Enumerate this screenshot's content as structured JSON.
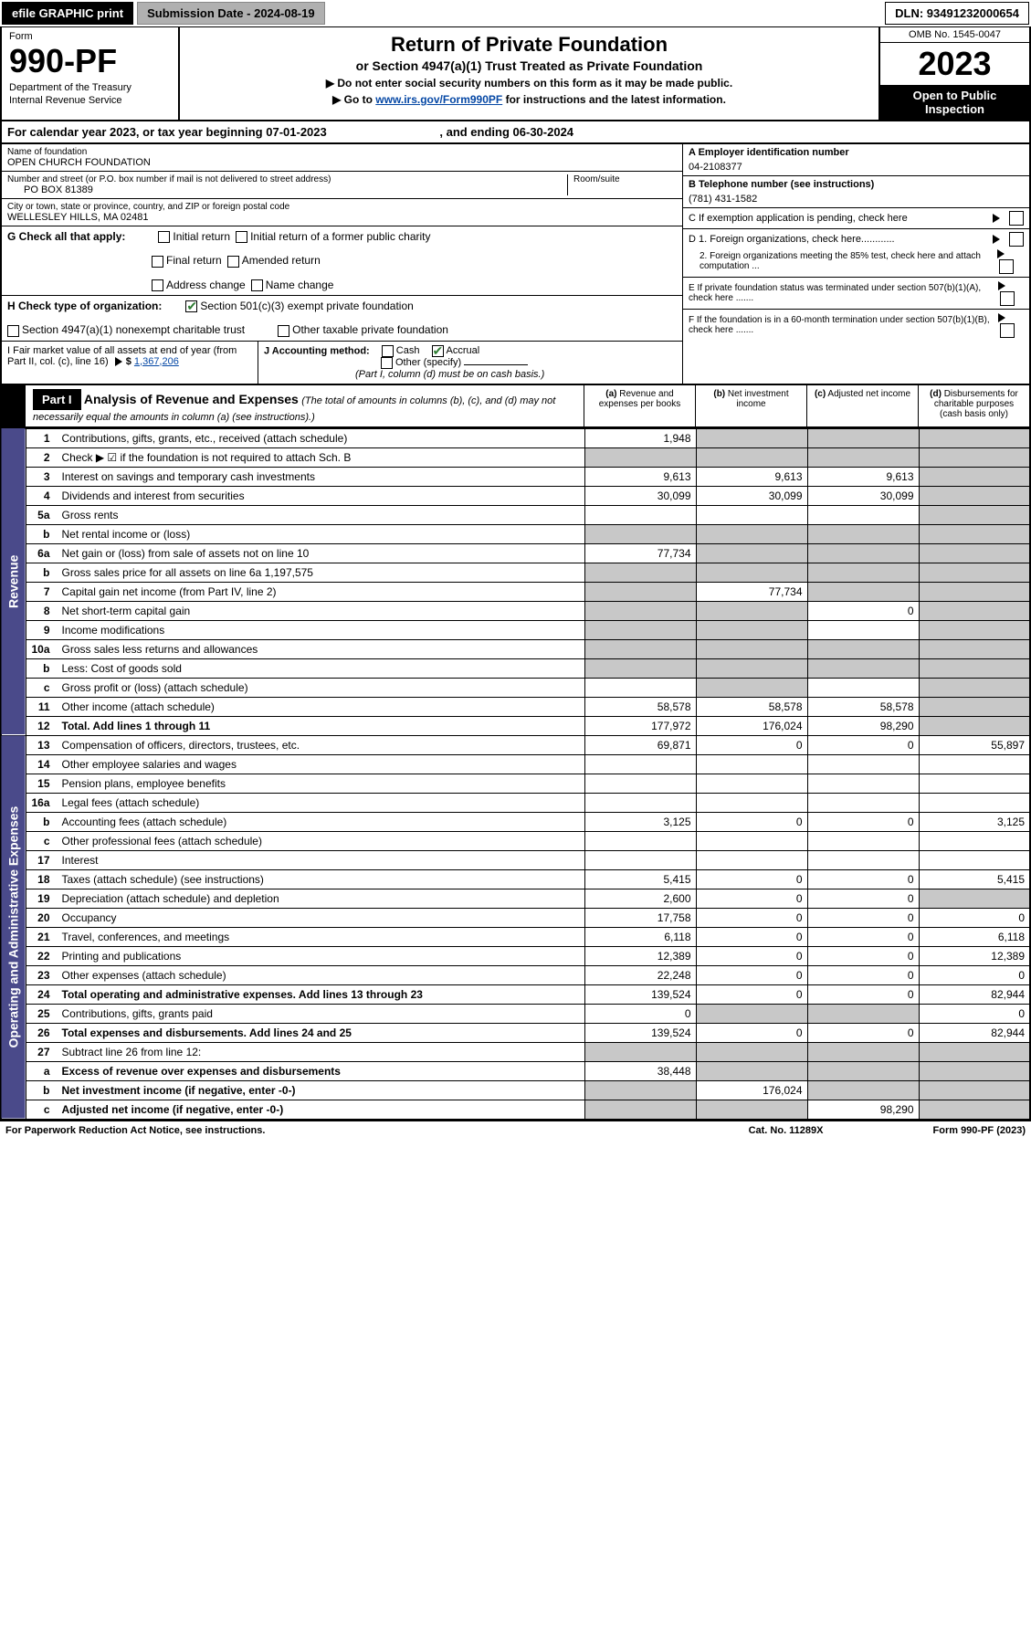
{
  "topbar": {
    "efile": "efile GRAPHIC print",
    "submission": "Submission Date - 2024-08-19",
    "dln": "DLN: 93491232000654"
  },
  "header": {
    "form_label": "Form",
    "form_no": "990-PF",
    "dept1": "Department of the Treasury",
    "dept2": "Internal Revenue Service",
    "title": "Return of Private Foundation",
    "subtitle": "or Section 4947(a)(1) Trust Treated as Private Foundation",
    "note1": "▶ Do not enter social security numbers on this form as it may be made public.",
    "note2_pre": "▶ Go to ",
    "note2_link": "www.irs.gov/Form990PF",
    "note2_post": " for instructions and the latest information.",
    "omb": "OMB No. 1545-0047",
    "year": "2023",
    "open": "Open to Public Inspection"
  },
  "calyear": {
    "text_pre": "For calendar year 2023, or tax year beginning ",
    "begin": "07-01-2023",
    "mid": " , and ending ",
    "end": "06-30-2024"
  },
  "info": {
    "name_label": "Name of foundation",
    "name": "OPEN CHURCH FOUNDATION",
    "addr_label": "Number and street (or P.O. box number if mail is not delivered to street address)",
    "addr": "PO BOX 81389",
    "room_label": "Room/suite",
    "city_label": "City or town, state or province, country, and ZIP or foreign postal code",
    "city": "WELLESLEY HILLS, MA  02481",
    "a_label": "A Employer identification number",
    "a_val": "04-2108377",
    "b_label": "B Telephone number (see instructions)",
    "b_val": "(781) 431-1582",
    "c_label": "C If exemption application is pending, check here",
    "d1": "D 1. Foreign organizations, check here............",
    "d2": "2. Foreign organizations meeting the 85% test, check here and attach computation ...",
    "e": "E  If private foundation status was terminated under section 507(b)(1)(A), check here .......",
    "f": "F  If the foundation is in a 60-month termination under section 507(b)(1)(B), check here .......",
    "g_label": "G Check all that apply:",
    "g_opts": [
      "Initial return",
      "Initial return of a former public charity",
      "Final return",
      "Amended return",
      "Address change",
      "Name change"
    ],
    "h_label": "H Check type of organization:",
    "h1": "Section 501(c)(3) exempt private foundation",
    "h2": "Section 4947(a)(1) nonexempt charitable trust",
    "h3": "Other taxable private foundation",
    "i_label": "I Fair market value of all assets at end of year (from Part II, col. (c), line 16)",
    "i_val": "1,367,206",
    "j_label": "J Accounting method:",
    "j_cash": "Cash",
    "j_accrual": "Accrual",
    "j_other": "Other (specify)",
    "j_note": "(Part I, column (d) must be on cash basis.)"
  },
  "part1": {
    "label": "Part I",
    "title": "Analysis of Revenue and Expenses",
    "title_note": "(The total of amounts in columns (b), (c), and (d) may not necessarily equal the amounts in column (a) (see instructions).)",
    "col_a": "(a) Revenue and expenses per books",
    "col_b": "(b) Net investment income",
    "col_c": "(c) Adjusted net income",
    "col_d": "(d) Disbursements for charitable purposes (cash basis only)"
  },
  "side_rev": "Revenue",
  "side_exp": "Operating and Administrative Expenses",
  "rows": [
    {
      "ln": "1",
      "desc": "Contributions, gifts, grants, etc., received (attach schedule)",
      "a": "1,948",
      "b": "",
      "c": "",
      "d": "",
      "shade_b": true,
      "shade_c": true,
      "shade_d": true
    },
    {
      "ln": "2",
      "desc": "Check ▶ ☑ if the foundation is not required to attach Sch. B",
      "a": "",
      "b": "",
      "c": "",
      "d": "",
      "shade_a": true,
      "shade_b": true,
      "shade_c": true,
      "shade_d": true
    },
    {
      "ln": "3",
      "desc": "Interest on savings and temporary cash investments",
      "a": "9,613",
      "b": "9,613",
      "c": "9,613",
      "d": "",
      "shade_d": true
    },
    {
      "ln": "4",
      "desc": "Dividends and interest from securities",
      "a": "30,099",
      "b": "30,099",
      "c": "30,099",
      "d": "",
      "shade_d": true
    },
    {
      "ln": "5a",
      "desc": "Gross rents",
      "a": "",
      "b": "",
      "c": "",
      "d": "",
      "shade_d": true
    },
    {
      "ln": "b",
      "desc": "Net rental income or (loss)",
      "a": "",
      "b": "",
      "c": "",
      "d": "",
      "shade_a": true,
      "shade_b": true,
      "shade_c": true,
      "shade_d": true
    },
    {
      "ln": "6a",
      "desc": "Net gain or (loss) from sale of assets not on line 10",
      "a": "77,734",
      "b": "",
      "c": "",
      "d": "",
      "shade_b": true,
      "shade_c": true,
      "shade_d": true
    },
    {
      "ln": "b",
      "desc": "Gross sales price for all assets on line 6a         1,197,575",
      "a": "",
      "b": "",
      "c": "",
      "d": "",
      "shade_a": true,
      "shade_b": true,
      "shade_c": true,
      "shade_d": true
    },
    {
      "ln": "7",
      "desc": "Capital gain net income (from Part IV, line 2)",
      "a": "",
      "b": "77,734",
      "c": "",
      "d": "",
      "shade_a": true,
      "shade_c": true,
      "shade_d": true
    },
    {
      "ln": "8",
      "desc": "Net short-term capital gain",
      "a": "",
      "b": "",
      "c": "0",
      "d": "",
      "shade_a": true,
      "shade_b": true,
      "shade_d": true
    },
    {
      "ln": "9",
      "desc": "Income modifications",
      "a": "",
      "b": "",
      "c": "",
      "d": "",
      "shade_a": true,
      "shade_b": true,
      "shade_d": true
    },
    {
      "ln": "10a",
      "desc": "Gross sales less returns and allowances",
      "a": "",
      "b": "",
      "c": "",
      "d": "",
      "shade_a": true,
      "shade_b": true,
      "shade_c": true,
      "shade_d": true
    },
    {
      "ln": "b",
      "desc": "Less: Cost of goods sold",
      "a": "",
      "b": "",
      "c": "",
      "d": "",
      "shade_a": true,
      "shade_b": true,
      "shade_c": true,
      "shade_d": true
    },
    {
      "ln": "c",
      "desc": "Gross profit or (loss) (attach schedule)",
      "a": "",
      "b": "",
      "c": "",
      "d": "",
      "shade_b": true,
      "shade_d": true
    },
    {
      "ln": "11",
      "desc": "Other income (attach schedule)",
      "a": "58,578",
      "b": "58,578",
      "c": "58,578",
      "d": "",
      "shade_d": true
    },
    {
      "ln": "12",
      "desc": "Total. Add lines 1 through 11",
      "a": "177,972",
      "b": "176,024",
      "c": "98,290",
      "d": "",
      "bold": true,
      "shade_d": true
    },
    {
      "ln": "13",
      "desc": "Compensation of officers, directors, trustees, etc.",
      "a": "69,871",
      "b": "0",
      "c": "0",
      "d": "55,897"
    },
    {
      "ln": "14",
      "desc": "Other employee salaries and wages",
      "a": "",
      "b": "",
      "c": "",
      "d": ""
    },
    {
      "ln": "15",
      "desc": "Pension plans, employee benefits",
      "a": "",
      "b": "",
      "c": "",
      "d": ""
    },
    {
      "ln": "16a",
      "desc": "Legal fees (attach schedule)",
      "a": "",
      "b": "",
      "c": "",
      "d": ""
    },
    {
      "ln": "b",
      "desc": "Accounting fees (attach schedule)",
      "a": "3,125",
      "b": "0",
      "c": "0",
      "d": "3,125"
    },
    {
      "ln": "c",
      "desc": "Other professional fees (attach schedule)",
      "a": "",
      "b": "",
      "c": "",
      "d": ""
    },
    {
      "ln": "17",
      "desc": "Interest",
      "a": "",
      "b": "",
      "c": "",
      "d": ""
    },
    {
      "ln": "18",
      "desc": "Taxes (attach schedule) (see instructions)",
      "a": "5,415",
      "b": "0",
      "c": "0",
      "d": "5,415"
    },
    {
      "ln": "19",
      "desc": "Depreciation (attach schedule) and depletion",
      "a": "2,600",
      "b": "0",
      "c": "0",
      "d": "",
      "shade_d": true
    },
    {
      "ln": "20",
      "desc": "Occupancy",
      "a": "17,758",
      "b": "0",
      "c": "0",
      "d": "0"
    },
    {
      "ln": "21",
      "desc": "Travel, conferences, and meetings",
      "a": "6,118",
      "b": "0",
      "c": "0",
      "d": "6,118"
    },
    {
      "ln": "22",
      "desc": "Printing and publications",
      "a": "12,389",
      "b": "0",
      "c": "0",
      "d": "12,389"
    },
    {
      "ln": "23",
      "desc": "Other expenses (attach schedule)",
      "a": "22,248",
      "b": "0",
      "c": "0",
      "d": "0"
    },
    {
      "ln": "24",
      "desc": "Total operating and administrative expenses. Add lines 13 through 23",
      "a": "139,524",
      "b": "0",
      "c": "0",
      "d": "82,944",
      "bold": true
    },
    {
      "ln": "25",
      "desc": "Contributions, gifts, grants paid",
      "a": "0",
      "b": "",
      "c": "",
      "d": "0",
      "shade_b": true,
      "shade_c": true
    },
    {
      "ln": "26",
      "desc": "Total expenses and disbursements. Add lines 24 and 25",
      "a": "139,524",
      "b": "0",
      "c": "0",
      "d": "82,944",
      "bold": true
    },
    {
      "ln": "27",
      "desc": "Subtract line 26 from line 12:",
      "a": "",
      "b": "",
      "c": "",
      "d": "",
      "shade_a": true,
      "shade_b": true,
      "shade_c": true,
      "shade_d": true
    },
    {
      "ln": "a",
      "desc": "Excess of revenue over expenses and disbursements",
      "a": "38,448",
      "b": "",
      "c": "",
      "d": "",
      "bold": true,
      "shade_b": true,
      "shade_c": true,
      "shade_d": true
    },
    {
      "ln": "b",
      "desc": "Net investment income (if negative, enter -0-)",
      "a": "",
      "b": "176,024",
      "c": "",
      "d": "",
      "bold": true,
      "shade_a": true,
      "shade_c": true,
      "shade_d": true
    },
    {
      "ln": "c",
      "desc": "Adjusted net income (if negative, enter -0-)",
      "a": "",
      "b": "",
      "c": "98,290",
      "d": "",
      "bold": true,
      "shade_a": true,
      "shade_b": true,
      "shade_d": true
    }
  ],
  "footer": {
    "left": "For Paperwork Reduction Act Notice, see instructions.",
    "mid": "Cat. No. 11289X",
    "right": "Form 990-PF (2023)"
  }
}
